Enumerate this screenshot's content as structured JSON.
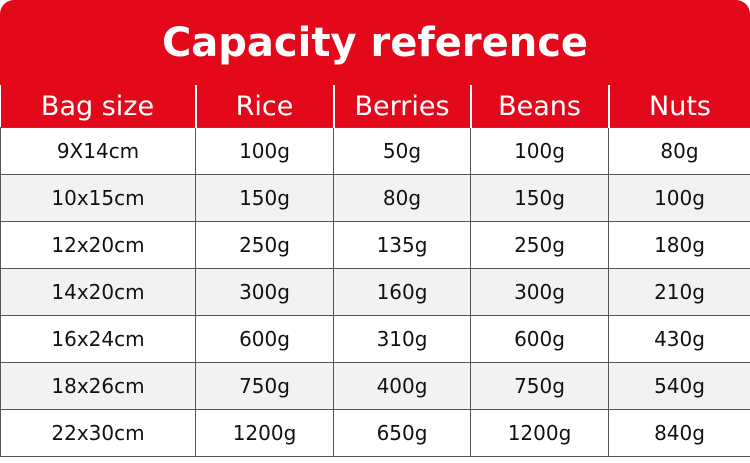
{
  "header": {
    "title": "Capacity reference"
  },
  "table": {
    "columns": [
      "Bag size",
      "Rice",
      "Berries",
      "Beans",
      "Nuts"
    ],
    "rows": [
      [
        "9X14cm",
        "100g",
        "50g",
        "100g",
        "80g"
      ],
      [
        "10x15cm",
        "150g",
        "80g",
        "150g",
        "100g"
      ],
      [
        "12x20cm",
        "250g",
        "135g",
        "250g",
        "180g"
      ],
      [
        "14x20cm",
        "300g",
        "160g",
        "300g",
        "210g"
      ],
      [
        "16x24cm",
        "600g",
        "310g",
        "600g",
        "430g"
      ],
      [
        "18x26cm",
        "750g",
        "400g",
        "750g",
        "540g"
      ],
      [
        "22x30cm",
        "1200g",
        "650g",
        "1200g",
        "840g"
      ]
    ]
  }
}
